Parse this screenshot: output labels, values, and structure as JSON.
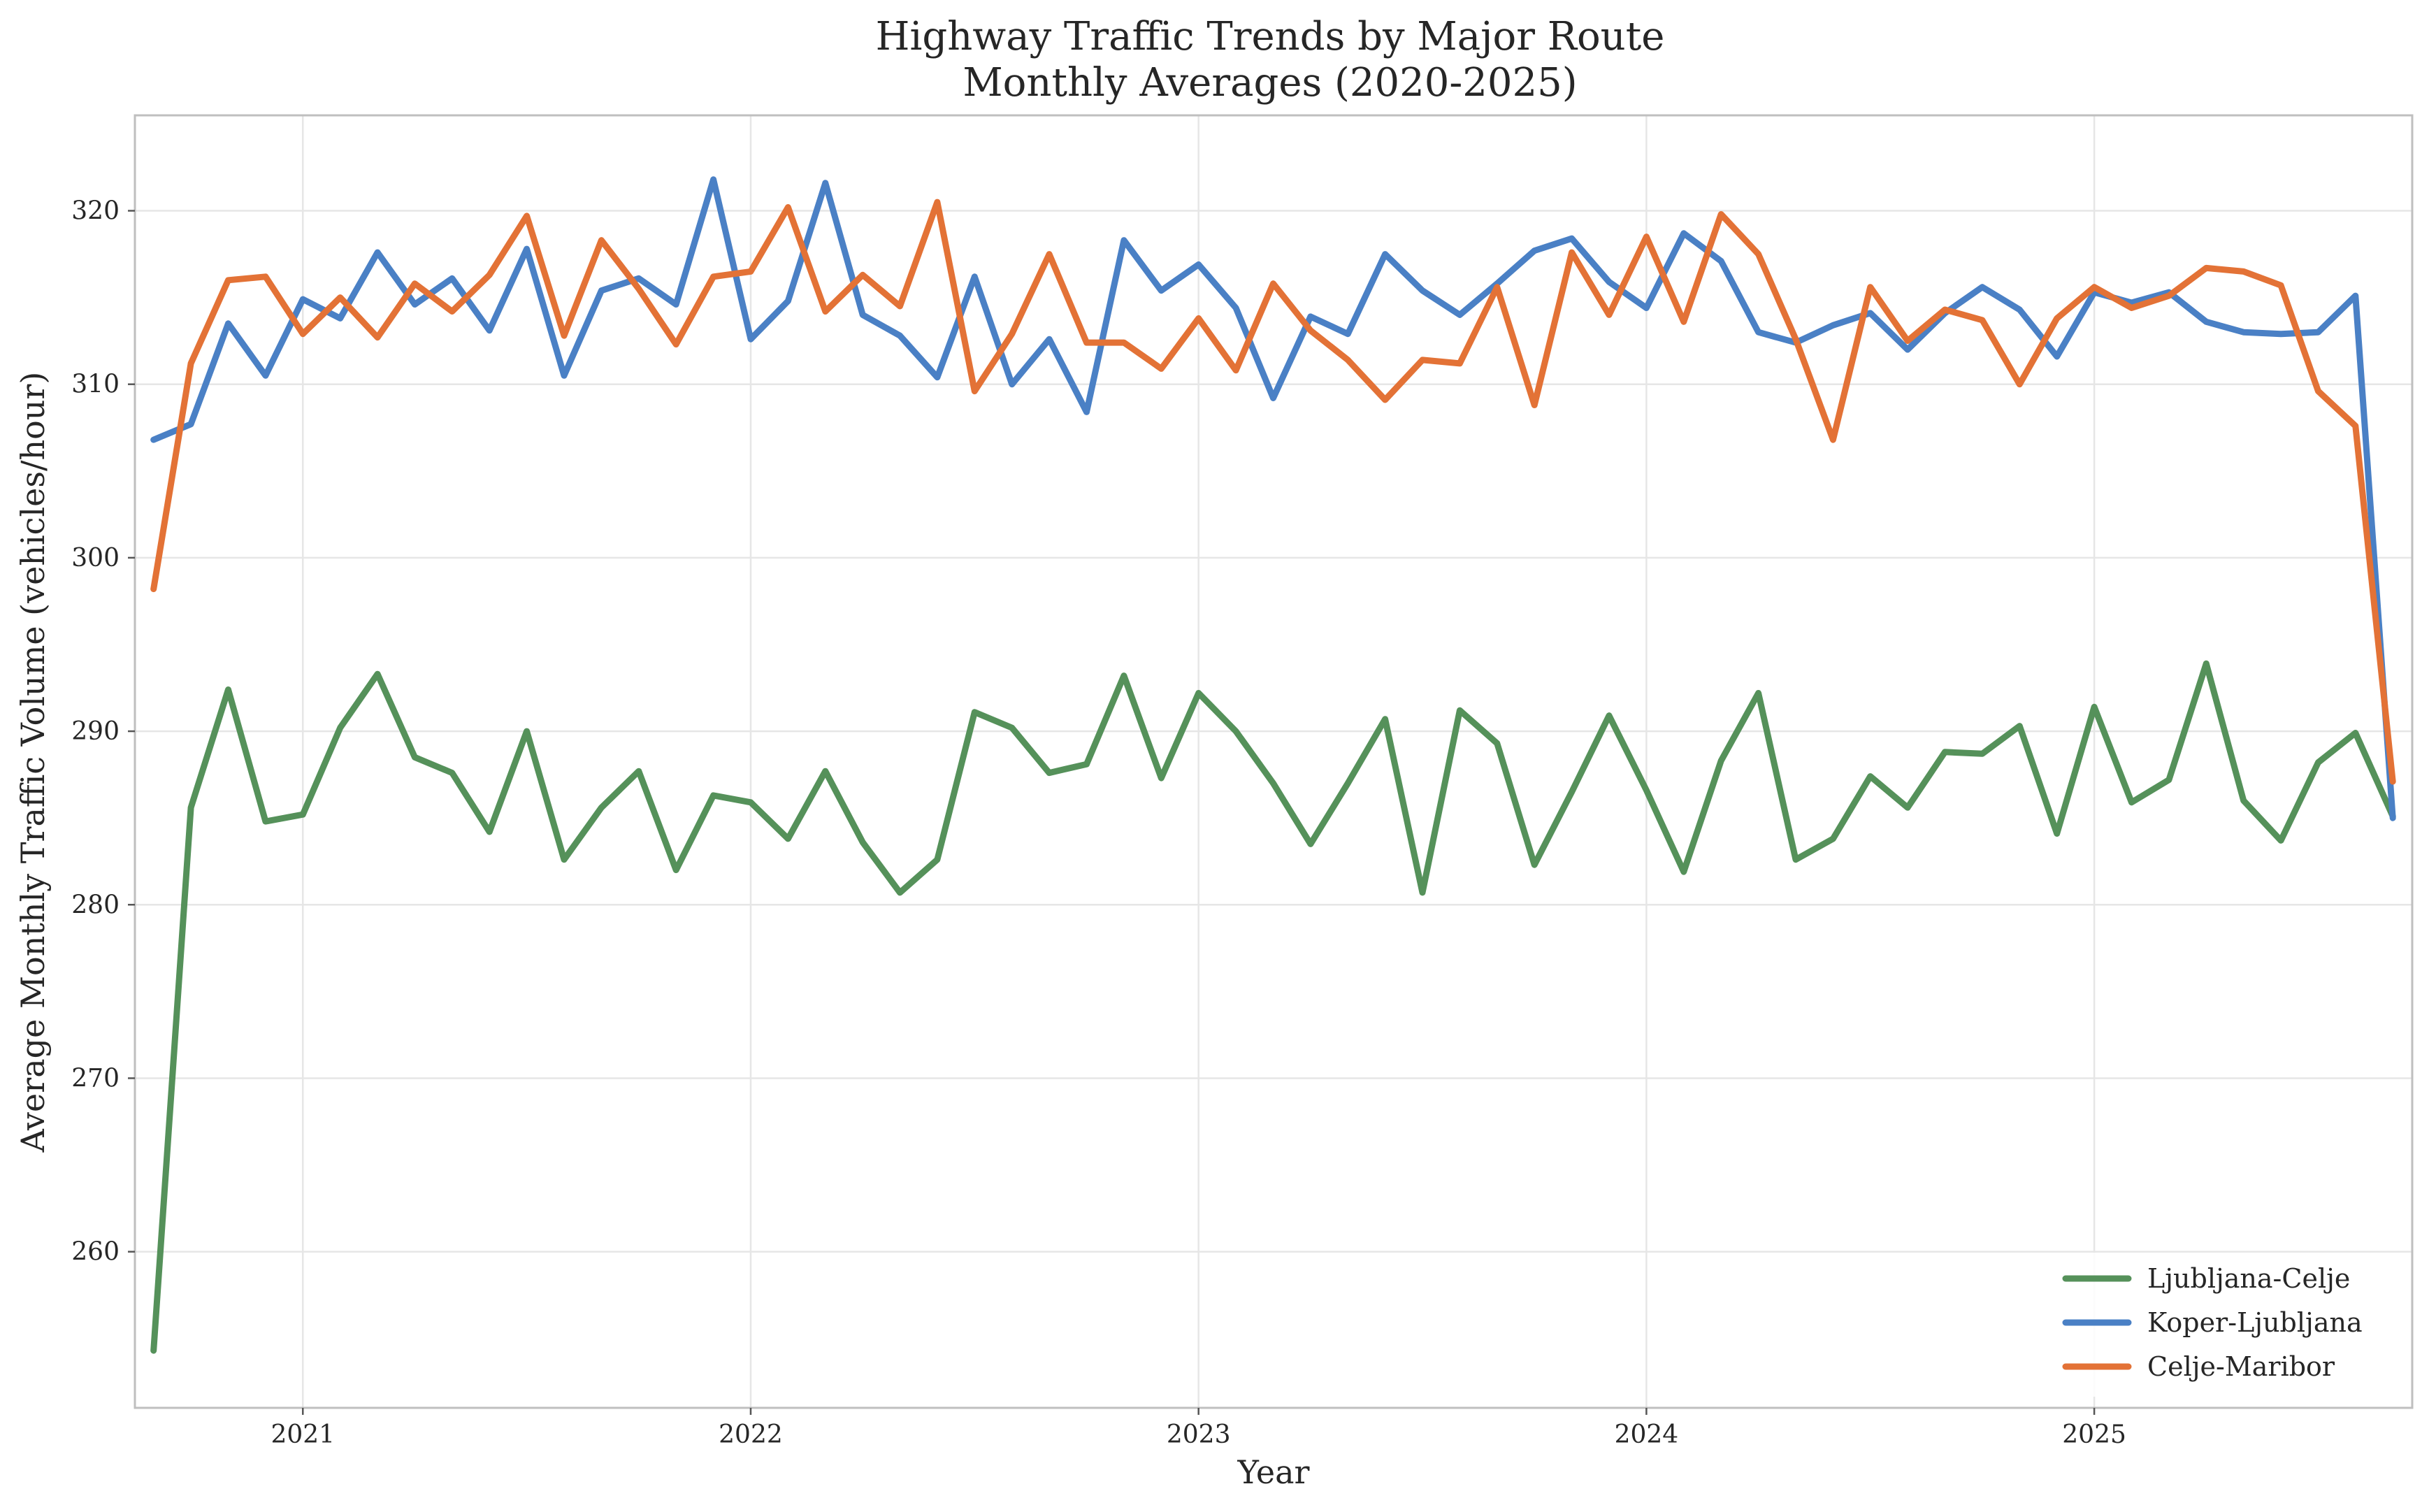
{
  "chart_data": {
    "type": "line",
    "title": "Highway Traffic Trends by Major Route",
    "subtitle": "Monthly Averages (2020-2025)",
    "xlabel": "Year",
    "ylabel": "Average Monthly Traffic Volume (vehicles/hour)",
    "x_start_year": 2020,
    "x_start_month": 9,
    "xlim": [
      2020.625,
      2025.71
    ],
    "ylim": [
      251,
      325.5
    ],
    "x_ticks": [
      2021,
      2022,
      2023,
      2024,
      2025
    ],
    "x_tick_labels": [
      "2021",
      "2022",
      "2023",
      "2024",
      "2025"
    ],
    "y_ticks": [
      260,
      270,
      280,
      290,
      300,
      310,
      320
    ],
    "y_tick_labels": [
      "260",
      "270",
      "280",
      "290",
      "300",
      "310",
      "320"
    ],
    "grid": true,
    "legend_position": "bottom-right",
    "series": [
      {
        "name": "Ljubljana-Celje",
        "color": "#55915a",
        "values": [
          254.3,
          285.6,
          292.4,
          284.8,
          285.2,
          290.2,
          293.3,
          288.5,
          287.6,
          284.2,
          290.0,
          282.6,
          285.6,
          287.7,
          282.0,
          286.3,
          285.9,
          283.8,
          287.7,
          283.6,
          280.7,
          282.6,
          291.1,
          290.2,
          287.6,
          288.1,
          293.2,
          287.3,
          292.2,
          290.0,
          287.0,
          283.5,
          287.0,
          290.7,
          280.7,
          291.2,
          289.3,
          282.3,
          286.5,
          290.9,
          286.6,
          281.9,
          288.3,
          292.2,
          282.6,
          283.8,
          287.4,
          285.6,
          288.8,
          288.7,
          290.3,
          284.1,
          291.4,
          285.9,
          287.2,
          293.9,
          286.0,
          283.7,
          288.2,
          289.9,
          285.1
        ]
      },
      {
        "name": "Koper-Ljubljana",
        "color": "#4a80c5",
        "values": [
          306.8,
          307.7,
          313.5,
          310.5,
          314.9,
          313.8,
          317.6,
          314.6,
          316.1,
          313.1,
          317.8,
          310.5,
          315.4,
          316.1,
          314.6,
          321.8,
          312.6,
          314.8,
          321.6,
          314.0,
          312.8,
          310.4,
          316.2,
          310.0,
          312.6,
          308.4,
          318.3,
          315.4,
          316.9,
          314.4,
          309.2,
          313.9,
          312.9,
          317.5,
          315.4,
          314.0,
          315.8,
          317.7,
          318.4,
          315.9,
          314.4,
          318.7,
          317.1,
          313.0,
          312.4,
          313.4,
          314.1,
          312.0,
          314.1,
          315.6,
          314.3,
          311.6,
          315.3,
          314.7,
          315.3,
          313.6,
          313.0,
          312.9,
          313.0,
          315.1,
          285.0
        ]
      },
      {
        "name": "Celje-Maribor",
        "color": "#e37236",
        "values": [
          298.2,
          311.2,
          316.0,
          316.2,
          312.9,
          315.0,
          312.7,
          315.8,
          314.2,
          316.3,
          319.7,
          312.8,
          318.3,
          315.5,
          312.3,
          316.2,
          316.5,
          320.2,
          314.2,
          316.3,
          314.5,
          320.5,
          309.6,
          312.9,
          317.5,
          312.4,
          312.4,
          310.9,
          313.8,
          310.8,
          315.8,
          313.1,
          311.4,
          309.1,
          311.4,
          311.2,
          315.6,
          308.8,
          317.6,
          314.0,
          318.5,
          313.6,
          319.8,
          317.5,
          312.6,
          306.8,
          315.6,
          312.5,
          314.3,
          313.7,
          310.0,
          313.8,
          315.6,
          314.4,
          315.1,
          316.7,
          316.5,
          315.7,
          309.6,
          307.6,
          287.1
        ]
      }
    ]
  }
}
